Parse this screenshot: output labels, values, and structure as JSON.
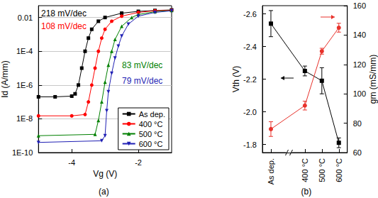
{
  "chart_data": [
    {
      "type": "line",
      "title": "(a)",
      "x_label": "Vg (V)",
      "y_label": "Id (A/mm)",
      "log": "y",
      "xlim": [
        -5,
        -1
      ],
      "xticks": [
        -4,
        -2
      ],
      "ylim": [
        1e-10,
        0.05
      ],
      "yticks": [
        {
          "value": 1e-10,
          "label": "1E-10"
        },
        {
          "value": 1e-08,
          "label": "1E-8"
        },
        {
          "value": 1e-06,
          "label": "1E-6"
        },
        {
          "value": 0.0001,
          "label": "1E-4"
        },
        0.01
      ],
      "grid": true,
      "legend": "lower right",
      "series": [
        {
          "name": "As dep.",
          "color": "#000000",
          "marker": "square",
          "x": [
            -5,
            -4.5,
            -4,
            -3.9,
            -3.8,
            -3.7,
            -3.6,
            -3.5,
            -3.4,
            -3.2,
            -3.0,
            -2.5,
            -2,
            -1.5,
            -1
          ],
          "values": [
            2e-07,
            2e-07,
            2.2e-07,
            3e-07,
            1e-06,
            1e-05,
            0.0001,
            0.0006,
            0.002,
            0.006,
            0.01,
            0.018,
            0.023,
            0.026,
            0.028
          ]
        },
        {
          "name": "400 °C",
          "color": "#ff0000",
          "marker": "circle",
          "x": [
            -5,
            -4,
            -3.6,
            -3.5,
            -3.4,
            -3.3,
            -3.2,
            -3.1,
            -3.0,
            -2.8,
            -2.5,
            -2,
            -1.5,
            -1
          ],
          "values": [
            1.5e-08,
            1.5e-08,
            1.8e-08,
            1e-07,
            1e-06,
            1e-05,
            0.0001,
            0.0006,
            0.002,
            0.006,
            0.012,
            0.02,
            0.025,
            0.027
          ]
        },
        {
          "name": "500 °C",
          "color": "#008000",
          "marker": "triangle",
          "x": [
            -5,
            -3.3,
            -3.2,
            -3.1,
            -3.0,
            -2.9,
            -2.8,
            -2.7,
            -2.5,
            -2.2,
            -2,
            -1.5,
            -1
          ],
          "values": [
            1e-09,
            1.2e-09,
            8e-09,
            1e-07,
            1.5e-06,
            1.5e-05,
            0.0001,
            0.0005,
            0.003,
            0.01,
            0.015,
            0.022,
            0.026
          ]
        },
        {
          "name": "600 °C",
          "color": "#1f1fb4",
          "marker": "triangle-down",
          "x": [
            -5,
            -3.1,
            -3.0,
            -2.95,
            -2.9,
            -2.8,
            -2.7,
            -2.6,
            -2.5,
            -2.3,
            -2,
            -1.5,
            -1
          ],
          "values": [
            4e-10,
            5e-10,
            1e-09,
            3e-08,
            4e-07,
            5e-06,
            4e-05,
            0.0002,
            0.0008,
            0.004,
            0.012,
            0.02,
            0.025
          ]
        }
      ],
      "annotations": [
        {
          "text": "218 mV/dec",
          "color": "#000000"
        },
        {
          "text": "108 mV/dec",
          "color": "#ff0000"
        },
        {
          "text": "83 mV/dec",
          "color": "#008000"
        },
        {
          "text": "79 mV/dec",
          "color": "#1f1fb4"
        }
      ]
    },
    {
      "type": "line",
      "title": "(b)",
      "y_label": "Vth (V)",
      "y2_label": "gm (mS/mm)",
      "categories": [
        "As dep.",
        null,
        "400 °C",
        "500 °C",
        "600 °C"
      ],
      "ylim": [
        -1.75,
        -2.65
      ],
      "yticks": [
        -2.6,
        -2.4,
        -2.2,
        {
          "value": -2,
          "label": "-2.0"
        },
        -1.8
      ],
      "y2lim": [
        60,
        160
      ],
      "y2ticks": [
        60,
        80,
        100,
        120,
        140,
        160
      ],
      "series": [
        {
          "color": "#000000",
          "marker": "square",
          "values": [
            -2.54,
            null,
            -2.25,
            -2.19,
            -1.81
          ],
          "errors": [
            0.08,
            null,
            0.03,
            0.08,
            0.03
          ]
        },
        {
          "color": "#e8312a",
          "marker": "circle",
          "axis": "y2",
          "values": [
            76,
            null,
            92,
            129,
            145
          ],
          "errors": [
            5,
            null,
            3,
            2,
            3
          ]
        }
      ]
    }
  ]
}
